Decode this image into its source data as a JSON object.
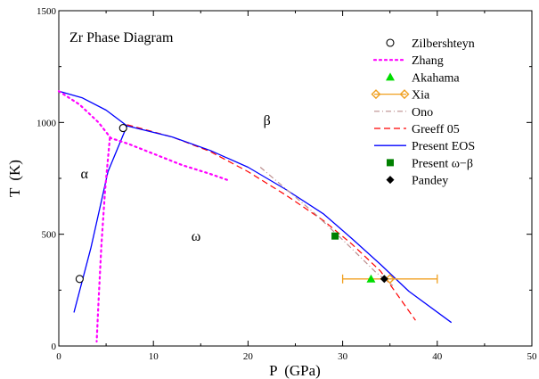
{
  "chart_data": {
    "type": "scatter",
    "title": "Zr Phase Diagram",
    "xlabel": "P  (GPa)",
    "ylabel": "T  (K)",
    "xlim": [
      0,
      50
    ],
    "ylim": [
      0,
      1500
    ],
    "xticks": [
      0,
      10,
      20,
      30,
      40,
      50
    ],
    "yticks": [
      0,
      500,
      1000,
      1500
    ],
    "grid": false,
    "legend_position": "top-right",
    "phase_labels": [
      {
        "text": "α",
        "x": 2.7,
        "y": 750
      },
      {
        "text": "β",
        "x": 22,
        "y": 990
      },
      {
        "text": "ω",
        "x": 14.5,
        "y": 470
      }
    ],
    "series": [
      {
        "name": "Zilbershteyn",
        "kind": "marker",
        "marker": "open-circle",
        "color": "#000000",
        "points": [
          [
            2.2,
            300
          ],
          [
            6.8,
            975
          ]
        ]
      },
      {
        "name": "Zhang",
        "kind": "line",
        "style": "dotted",
        "color": "#ff00ff",
        "segments": [
          [
            [
              0,
              1140
            ],
            [
              2.2,
              1080
            ],
            [
              4.2,
              1000
            ],
            [
              5.5,
              930
            ],
            [
              7.3,
              905
            ],
            [
              10,
              860
            ],
            [
              13,
              810
            ],
            [
              16,
              770
            ],
            [
              18,
              740
            ]
          ],
          [
            [
              5.4,
              930
            ],
            [
              4.9,
              700
            ],
            [
              4.5,
              450
            ],
            [
              4.2,
              200
            ],
            [
              4.0,
              20
            ]
          ]
        ]
      },
      {
        "name": "Akahama",
        "kind": "marker",
        "marker": "filled-triangle",
        "color": "#00dd00",
        "points": [
          [
            33.0,
            300
          ]
        ]
      },
      {
        "name": "Xia",
        "kind": "marker-errorbar",
        "marker": "open-diamond",
        "color": "#f0a020",
        "points": [
          [
            35.0,
            300
          ]
        ],
        "xerr": [
          [
            30.0,
            40.0
          ]
        ]
      },
      {
        "name": "Ono",
        "kind": "line",
        "style": "dash-dot",
        "color": "#bc8f8f",
        "segments": [
          [
            [
              21.3,
              800
            ],
            [
              27,
              595
            ],
            [
              30.5,
              455
            ],
            [
              33.5,
              330
            ],
            [
              35.3,
              270
            ]
          ]
        ]
      },
      {
        "name": "Greeff 05",
        "kind": "line",
        "style": "dashed",
        "color": "#ff0000",
        "segments": [
          [
            [
              7.2,
              990
            ],
            [
              12,
              935
            ],
            [
              16,
              870
            ],
            [
              20,
              780
            ],
            [
              24,
              675
            ],
            [
              28,
              560
            ],
            [
              31,
              455
            ],
            [
              34,
              335
            ],
            [
              37.7,
              115
            ]
          ]
        ]
      },
      {
        "name": "Present EOS",
        "kind": "line",
        "style": "solid",
        "color": "#0000ff",
        "segments": [
          [
            [
              0,
              1140
            ],
            [
              2.5,
              1110
            ],
            [
              5,
              1055
            ],
            [
              7.2,
              985
            ]
          ],
          [
            [
              7.2,
              985
            ],
            [
              12,
              935
            ],
            [
              16,
              875
            ],
            [
              20,
              800
            ],
            [
              24,
              700
            ],
            [
              28,
              590
            ],
            [
              31,
              480
            ],
            [
              34,
              365
            ],
            [
              37,
              245
            ],
            [
              41.5,
              105
            ]
          ],
          [
            [
              7.2,
              985
            ],
            [
              5.2,
              780
            ],
            [
              3.4,
              440
            ],
            [
              1.6,
              150
            ]
          ]
        ]
      },
      {
        "name": "Present ω−β",
        "kind": "marker",
        "marker": "filled-square",
        "color": "#008000",
        "points": [
          [
            29.2,
            492
          ]
        ]
      },
      {
        "name": "Pandey",
        "kind": "marker",
        "marker": "filled-diamond",
        "color": "#000000",
        "points": [
          [
            34.4,
            300
          ]
        ]
      }
    ]
  }
}
